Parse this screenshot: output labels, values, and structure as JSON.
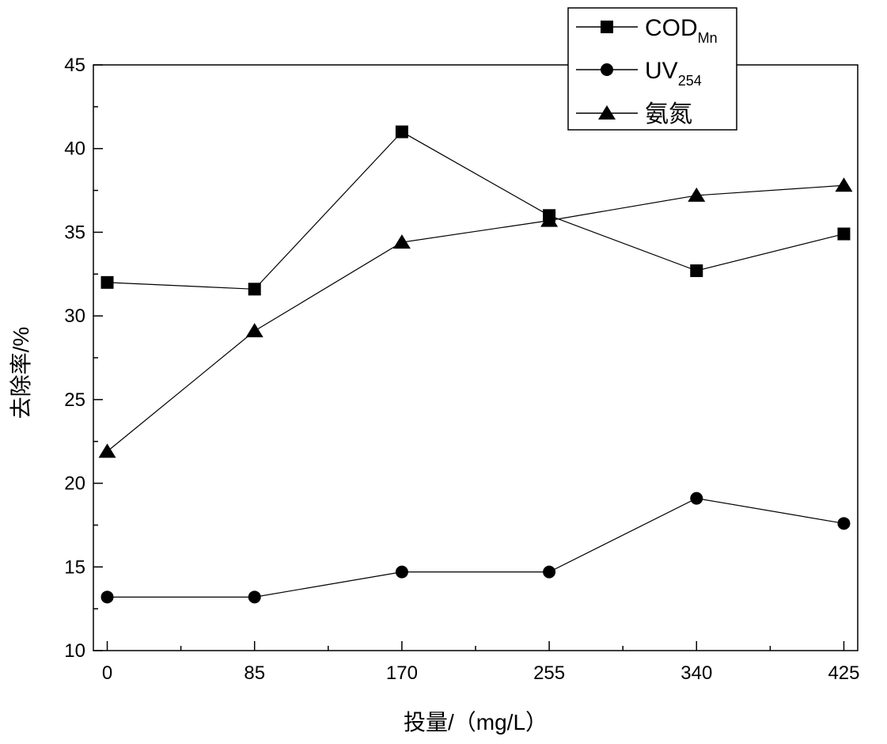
{
  "chart_data": {
    "type": "line",
    "xlabel": "投量/（mg/L）",
    "ylabel": "去除率/%",
    "x": [
      0,
      85,
      170,
      255,
      340,
      425
    ],
    "xlim": [
      -8,
      433
    ],
    "ylim": [
      10,
      45
    ],
    "yticks": [
      10,
      15,
      20,
      25,
      30,
      35,
      40,
      45
    ],
    "grid": false,
    "legend_position": "top-right",
    "series": [
      {
        "name": "COD",
        "name_sub": "Mn",
        "marker": "square",
        "values": [
          32.0,
          31.6,
          41.0,
          36.0,
          32.7,
          34.9
        ]
      },
      {
        "name": "UV",
        "name_sub": "254",
        "marker": "circle",
        "values": [
          13.2,
          13.2,
          14.7,
          14.7,
          19.1,
          17.6
        ]
      },
      {
        "name": "氨氮",
        "name_sub": "",
        "marker": "triangle",
        "values": [
          21.9,
          29.1,
          34.4,
          35.7,
          37.2,
          37.8
        ]
      }
    ]
  }
}
